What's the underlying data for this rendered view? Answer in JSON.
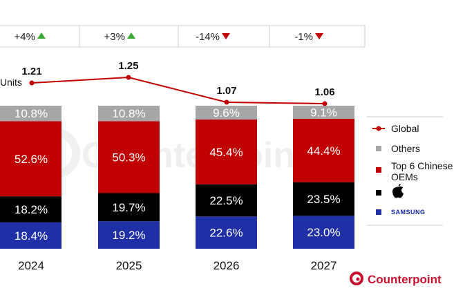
{
  "chart_data": {
    "type": "bar",
    "stacked": true,
    "categories": [
      "2024",
      "2025",
      "2026",
      "2027"
    ],
    "series": [
      {
        "name": "SAMSUNG",
        "color": "#1f2fa6",
        "label_color": "#ffffff",
        "values": [
          18.4,
          19.2,
          22.6,
          23.0
        ],
        "labels": [
          "18.4%",
          "19.2%",
          "22.6%",
          "23.0%"
        ]
      },
      {
        "name": "Apple",
        "color": "#000000",
        "label_color": "#ffffff",
        "values": [
          18.2,
          19.7,
          22.5,
          23.5
        ],
        "labels": [
          "18.2%",
          "19.7%",
          "22.5%",
          "23.5%"
        ]
      },
      {
        "name": "Top 6 Chinese OEMs",
        "color": "#c00000",
        "label_color": "#ffffff",
        "values": [
          52.6,
          50.3,
          45.4,
          44.4
        ],
        "labels": [
          "52.6%",
          "50.3%",
          "45.4%",
          "44.4%"
        ]
      },
      {
        "name": "Others",
        "color": "#a6a6a6",
        "label_color": "#ffffff",
        "values": [
          10.8,
          10.8,
          9.6,
          9.1
        ],
        "labels": [
          "10.8%",
          "10.8%",
          "9.6%",
          "9.1%"
        ]
      }
    ],
    "line": {
      "name": "Global",
      "color": "#c00000",
      "values": [
        1.21,
        1.25,
        1.07,
        1.06
      ],
      "labels": [
        "1.21",
        "1.25",
        "1.07",
        "1.06"
      ]
    },
    "growth": [
      {
        "text": "+4%",
        "direction": "up"
      },
      {
        "text": "+3%",
        "direction": "up"
      },
      {
        "text": "-14%",
        "direction": "down"
      },
      {
        "text": "-1%",
        "direction": "down"
      }
    ],
    "unit_label": "Units",
    "legend_position": "right",
    "legend": [
      {
        "label": "Global",
        "marker": "line-dot",
        "color": "#c00000"
      },
      {
        "label": "Others",
        "marker": "square",
        "color": "#a6a6a6"
      },
      {
        "label": "Top 6 Chinese OEMs",
        "display": [
          "Top 6 Chinese",
          "OEMs"
        ],
        "marker": "square",
        "color": "#c00000"
      },
      {
        "label": "Apple",
        "marker": "square",
        "color": "#000000",
        "icon": "apple-logo-icon"
      },
      {
        "label": "SAMSUNG",
        "marker": "square",
        "color": "#1f2fa6",
        "icon": "samsung-wordmark"
      }
    ],
    "growth_up_color": "#3aaa35",
    "growth_down_color": "#c00000",
    "source_logo": "Counterpoint",
    "watermark": "Counterpoint"
  }
}
